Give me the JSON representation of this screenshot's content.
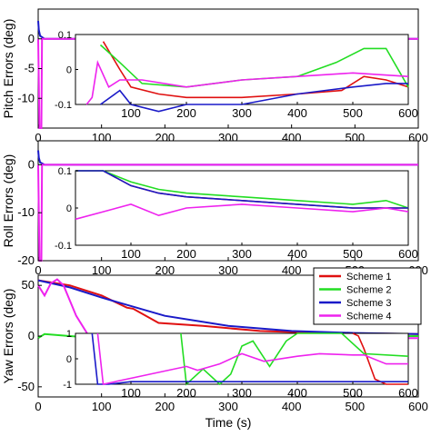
{
  "chart_data": [
    {
      "type": "line",
      "ylabel": "Pitch Errors (deg)",
      "xlabel": "",
      "xlim": [
        0,
        600
      ],
      "ylim": [
        -15,
        5
      ],
      "xticks": [
        0,
        100,
        200,
        300,
        400,
        500,
        600
      ],
      "yticks": [
        -10,
        -5,
        0
      ],
      "series": [
        {
          "values": [
            [
              0,
              3
            ],
            [
              1,
              1.5
            ],
            [
              3,
              0.5
            ],
            [
              10,
              0
            ],
            [
              600,
              0
            ]
          ]
        },
        {
          "values": [
            [
              0,
              0
            ],
            [
              2,
              -15
            ],
            [
              5,
              -15
            ],
            [
              6,
              0
            ],
            [
              600,
              0
            ]
          ]
        }
      ],
      "inset": {
        "xlim": [
          0,
          600
        ],
        "ylim": [
          -0.1,
          0.1
        ],
        "xticks": [
          100,
          200,
          300,
          400,
          500,
          600
        ],
        "yticks": [
          -0.1,
          0,
          0.1
        ],
        "series": [
          {
            "values": [
              [
                50,
                0.08
              ],
              [
                80,
                0
              ],
              [
                100,
                -0.05
              ],
              [
                150,
                -0.07
              ],
              [
                200,
                -0.08
              ],
              [
                300,
                -0.08
              ],
              [
                400,
                -0.07
              ],
              [
                480,
                -0.06
              ],
              [
                520,
                -0.02
              ],
              [
                560,
                -0.03
              ],
              [
                600,
                -0.05
              ]
            ]
          },
          {
            "values": [
              [
                45,
                0.07
              ],
              [
                80,
                0.02
              ],
              [
                120,
                -0.04
              ],
              [
                200,
                -0.05
              ],
              [
                300,
                -0.03
              ],
              [
                400,
                -0.02
              ],
              [
                470,
                0.02
              ],
              [
                520,
                0.06
              ],
              [
                560,
                0.06
              ],
              [
                600,
                -0.05
              ]
            ]
          },
          {
            "values": [
              [
                45,
                -0.1
              ],
              [
                80,
                -0.06
              ],
              [
                100,
                -0.1
              ],
              [
                150,
                -0.12
              ],
              [
                200,
                -0.1
              ],
              [
                300,
                -0.1
              ],
              [
                400,
                -0.07
              ],
              [
                500,
                -0.05
              ],
              [
                560,
                -0.04
              ],
              [
                600,
                -0.04
              ]
            ]
          },
          {
            "values": [
              [
                20,
                -0.1
              ],
              [
                30,
                -0.08
              ],
              [
                40,
                0.02
              ],
              [
                60,
                -0.05
              ],
              [
                80,
                -0.03
              ],
              [
                120,
                -0.03
              ],
              [
                200,
                -0.05
              ],
              [
                300,
                -0.03
              ],
              [
                400,
                -0.02
              ],
              [
                500,
                -0.01
              ],
              [
                600,
                -0.02
              ]
            ]
          }
        ]
      }
    },
    {
      "type": "line",
      "ylabel": "Roll Errors (deg)",
      "xlabel": "",
      "xlim": [
        0,
        600
      ],
      "ylim": [
        -20,
        5
      ],
      "xticks": [
        0,
        100,
        200,
        300,
        400,
        500,
        600
      ],
      "yticks": [
        -20,
        -10,
        0
      ],
      "series": [
        {
          "values": [
            [
              0,
              3
            ],
            [
              1,
              1.5
            ],
            [
              3,
              0.5
            ],
            [
              10,
              0
            ],
            [
              600,
              0
            ]
          ]
        },
        {
          "values": [
            [
              0,
              0
            ],
            [
              2,
              -20
            ],
            [
              5,
              -20
            ],
            [
              6,
              0
            ],
            [
              600,
              0
            ]
          ]
        }
      ],
      "inset": {
        "xlim": [
          0,
          600
        ],
        "ylim": [
          -0.1,
          0.1
        ],
        "xticks": [
          100,
          200,
          300,
          400,
          500,
          600
        ],
        "yticks": [
          -0.1,
          0,
          0.1
        ],
        "series": [
          {
            "values": [
              [
                0,
                0.1
              ],
              [
                50,
                0.1
              ],
              [
                100,
                0.06
              ],
              [
                150,
                0.04
              ],
              [
                200,
                0.03
              ],
              [
                300,
                0.02
              ],
              [
                400,
                0.01
              ],
              [
                500,
                0.0
              ],
              [
                560,
                0.0
              ],
              [
                600,
                0.0
              ]
            ]
          },
          {
            "values": [
              [
                0,
                0.1
              ],
              [
                50,
                0.1
              ],
              [
                100,
                0.07
              ],
              [
                150,
                0.05
              ],
              [
                200,
                0.04
              ],
              [
                300,
                0.03
              ],
              [
                400,
                0.02
              ],
              [
                500,
                0.01
              ],
              [
                560,
                0.02
              ],
              [
                600,
                0.0
              ]
            ]
          },
          {
            "values": [
              [
                0,
                0.1
              ],
              [
                50,
                0.1
              ],
              [
                100,
                0.06
              ],
              [
                150,
                0.04
              ],
              [
                200,
                0.03
              ],
              [
                300,
                0.02
              ],
              [
                400,
                0.01
              ],
              [
                500,
                0.0
              ],
              [
                560,
                0.0
              ],
              [
                600,
                0.0
              ]
            ]
          },
          {
            "values": [
              [
                0,
                -0.03
              ],
              [
                50,
                -0.01
              ],
              [
                100,
                0.01
              ],
              [
                150,
                -0.02
              ],
              [
                200,
                0.0
              ],
              [
                300,
                0.01
              ],
              [
                400,
                0.0
              ],
              [
                500,
                -0.01
              ],
              [
                560,
                0.0
              ],
              [
                600,
                -0.01
              ]
            ]
          }
        ]
      }
    },
    {
      "type": "line",
      "ylabel": "Yaw Errors (deg)",
      "xlabel": "Time (s)",
      "xlim": [
        0,
        600
      ],
      "ylim": [
        -60,
        60
      ],
      "xticks": [
        0,
        100,
        200,
        300,
        400,
        500,
        600
      ],
      "yticks": [
        -50,
        0,
        50
      ],
      "series": [
        {
          "name": "Scheme 1",
          "color": "#e01010",
          "values": [
            [
              0,
              55
            ],
            [
              50,
              50
            ],
            [
              100,
              40
            ],
            [
              140,
              28
            ],
            [
              150,
              27
            ],
            [
              190,
              13
            ],
            [
              260,
              10
            ],
            [
              350,
              5
            ],
            [
              450,
              3
            ],
            [
              600,
              2
            ]
          ]
        },
        {
          "name": "Scheme 2",
          "color": "#22dd22",
          "values": [
            [
              0,
              -2
            ],
            [
              10,
              2
            ],
            [
              50,
              0
            ],
            [
              120,
              -3
            ],
            [
              200,
              -2
            ],
            [
              300,
              0
            ],
            [
              400,
              -1
            ],
            [
              600,
              0
            ]
          ]
        },
        {
          "name": "Scheme 3",
          "color": "#1a1ac8",
          "values": [
            [
              0,
              55
            ],
            [
              50,
              48
            ],
            [
              100,
              38
            ],
            [
              200,
              20
            ],
            [
              300,
              10
            ],
            [
              400,
              5
            ],
            [
              500,
              3
            ],
            [
              600,
              2
            ]
          ]
        },
        {
          "name": "Scheme 4",
          "color": "#ee22ee",
          "values": [
            [
              0,
              50
            ],
            [
              10,
              40
            ],
            [
              20,
              52
            ],
            [
              30,
              56
            ],
            [
              40,
              50
            ],
            [
              60,
              20
            ],
            [
              80,
              0
            ],
            [
              100,
              -3
            ],
            [
              200,
              -3
            ],
            [
              600,
              -2
            ]
          ]
        }
      ],
      "inset": {
        "xlim": [
          0,
          600
        ],
        "ylim": [
          -1,
          1
        ],
        "xticks": [
          100,
          200,
          300,
          400,
          500,
          600
        ],
        "yticks": [
          -1,
          0,
          1
        ],
        "series": [
          {
            "values": [
              [
                500,
                1
              ],
              [
                510,
                0.9
              ],
              [
                520,
                0.4
              ],
              [
                530,
                -0.2
              ],
              [
                540,
                -0.8
              ],
              [
                560,
                -1.0
              ],
              [
                600,
                -1.0
              ]
            ]
          },
          {
            "values": [
              [
                190,
                1
              ],
              [
                200,
                -1
              ],
              [
                230,
                -0.4
              ],
              [
                260,
                -1
              ],
              [
                280,
                -0.6
              ],
              [
                300,
                0.5
              ],
              [
                320,
                0.7
              ],
              [
                350,
                -0.3
              ],
              [
                380,
                0.7
              ],
              [
                400,
                1
              ],
              [
                480,
                1
              ],
              [
                520,
                0.2
              ],
              [
                600,
                0.1
              ]
            ]
          },
          {
            "values": [
              [
                30,
                1
              ],
              [
                40,
                -1
              ],
              [
                60,
                -1
              ],
              [
                100,
                -0.9
              ],
              [
                200,
                -0.9
              ],
              [
                300,
                -0.9
              ],
              [
                400,
                -0.9
              ],
              [
                600,
                -0.9
              ]
            ]
          },
          {
            "values": [
              [
                40,
                1
              ],
              [
                50,
                -1
              ],
              [
                200,
                -0.3
              ],
              [
                220,
                -0.45
              ],
              [
                260,
                -0.2
              ],
              [
                300,
                0.2
              ],
              [
                340,
                -0.1
              ],
              [
                400,
                0.1
              ],
              [
                440,
                0.2
              ],
              [
                500,
                0.15
              ],
              [
                520,
                0.15
              ],
              [
                560,
                -0.2
              ],
              [
                600,
                -0.2
              ]
            ]
          }
        ]
      }
    }
  ],
  "legend": [
    {
      "label": "Scheme 1",
      "color": "#e01010"
    },
    {
      "label": "Scheme 2",
      "color": "#22dd22"
    },
    {
      "label": "Scheme 3",
      "color": "#1a1ac8"
    },
    {
      "label": "Scheme 4",
      "color": "#ee22ee"
    }
  ],
  "colors": {
    "scheme1": "#e01010",
    "scheme2": "#22dd22",
    "scheme3": "#1a1ac8",
    "scheme4": "#ee22ee",
    "baseline": "#1a1ac8",
    "spike": "#ee22ee"
  }
}
